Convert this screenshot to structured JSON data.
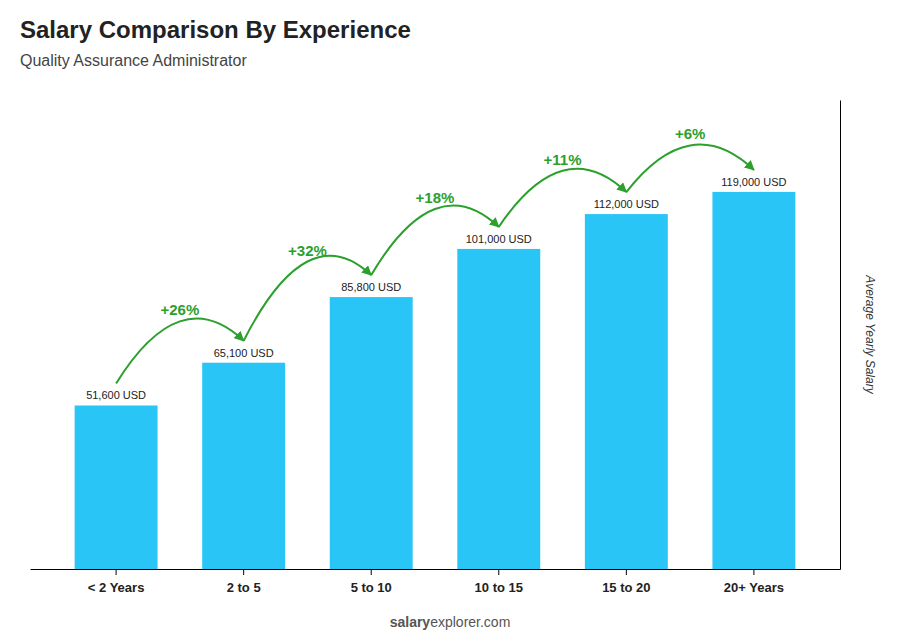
{
  "chart_data": {
    "type": "bar",
    "title": "Salary Comparison By Experience",
    "subtitle": "Quality Assurance Administrator",
    "categories": [
      "< 2 Years",
      "2 to 5",
      "5 to 10",
      "10 to 15",
      "15 to 20",
      "20+ Years"
    ],
    "values": [
      51600,
      65100,
      85800,
      101000,
      112000,
      119000
    ],
    "value_labels": [
      "51,600 USD",
      "65,100 USD",
      "85,800 USD",
      "101,000 USD",
      "112,000 USD",
      "119,000 USD"
    ],
    "data_labels": true,
    "color": "#29C5F6",
    "ylabel": "Average Yearly Salary",
    "ylim": [
      0,
      148000
    ],
    "tick_labels": "x",
    "annotations": [
      "+26%",
      "+32%",
      "+18%",
      "+11%",
      "+6%"
    ],
    "watermark": [
      "salary",
      "explorer.com"
    ]
  }
}
